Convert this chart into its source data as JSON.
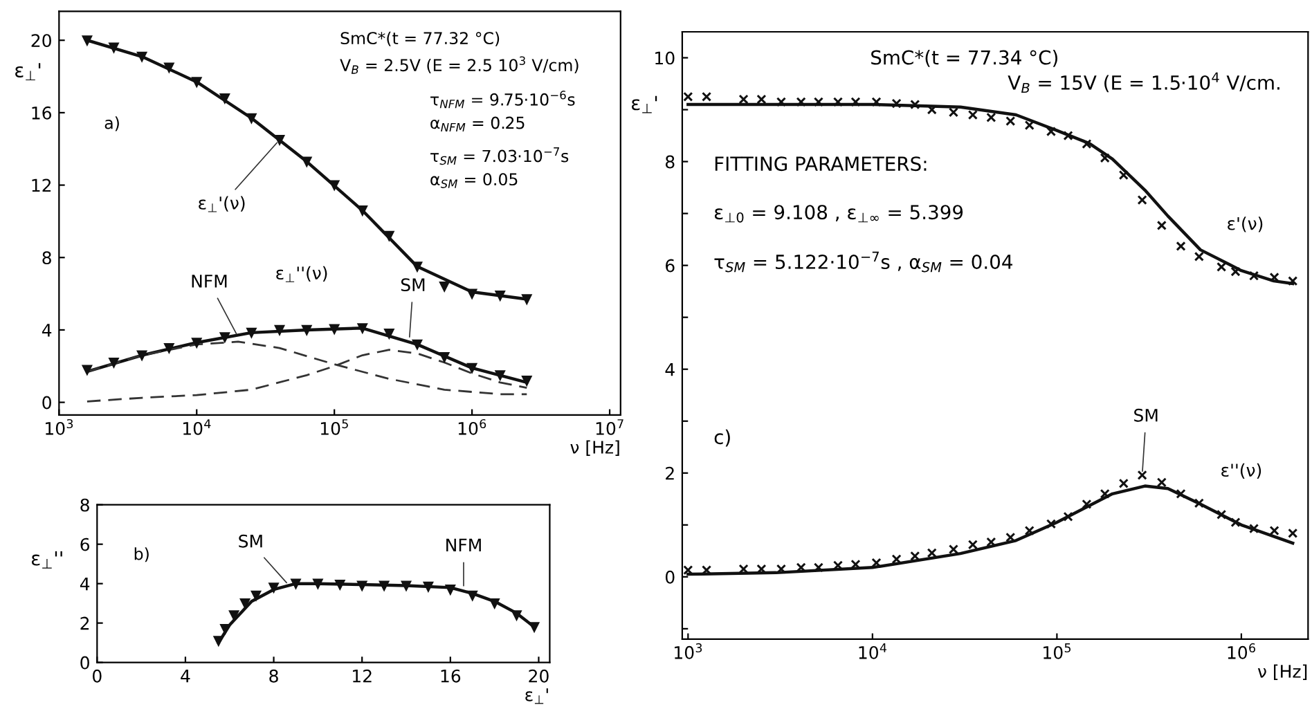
{
  "chart_data": [
    {
      "type": "line",
      "xlabel": "ν [Hz]",
      "ylabel": "ε$_{⊥}$'",
      "log": "x",
      "xlim": [
        1000,
        12000000
      ],
      "ylim": [
        -0.7,
        21.6
      ],
      "xticks": [
        {
          "value": 1000,
          "label": "10$^{3}$"
        },
        {
          "value": 10000,
          "label": "10$^{4}$"
        },
        {
          "value": 100000,
          "label": "10$^{5}$"
        },
        {
          "value": 1000000,
          "label": "10$^{6}$"
        },
        {
          "value": 10000000,
          "label": "10$^{7}$"
        }
      ],
      "yticks": [
        0,
        4,
        8,
        12,
        16,
        20
      ],
      "series": [
        {
          "type": "scatter",
          "marker": "triangle",
          "color": "#111111",
          "x": [
            1600,
            2500,
            4000,
            6300,
            10000,
            16000,
            25000,
            40000,
            63000,
            100000,
            160000,
            250000,
            400000,
            630000,
            1000000,
            1600000,
            2500000
          ],
          "values": [
            20.0,
            19.6,
            19.1,
            18.5,
            17.7,
            16.8,
            15.7,
            14.5,
            13.3,
            12.0,
            10.6,
            9.2,
            7.5,
            6.4,
            6.0,
            5.9,
            5.7
          ]
        },
        {
          "line_style": "solid",
          "color": "#111111",
          "x": [
            1600,
            4000,
            10000,
            25000,
            63000,
            160000,
            400000,
            1000000,
            2500000
          ],
          "values": [
            20.0,
            19.1,
            17.7,
            15.7,
            13.3,
            10.6,
            7.5,
            6.1,
            5.7
          ]
        },
        {
          "type": "scatter",
          "marker": "triangle",
          "color": "#111111",
          "x": [
            1600,
            2500,
            4000,
            6300,
            10000,
            16000,
            25000,
            40000,
            63000,
            100000,
            160000,
            250000,
            400000,
            630000,
            1000000,
            1600000,
            2500000
          ],
          "values": [
            1.8,
            2.2,
            2.6,
            3.0,
            3.3,
            3.6,
            3.85,
            4.0,
            4.0,
            4.05,
            4.1,
            3.8,
            3.2,
            2.5,
            1.9,
            1.5,
            1.2
          ]
        },
        {
          "line_style": "solid",
          "color": "#111111",
          "x": [
            1600,
            4000,
            10000,
            25000,
            63000,
            160000,
            400000,
            1000000,
            2500000
          ],
          "values": [
            1.7,
            2.6,
            3.3,
            3.85,
            4.0,
            4.1,
            3.2,
            1.9,
            1.1
          ]
        },
        {
          "line_style": "dashed",
          "color": "#333333",
          "x": [
            1600,
            4000,
            10000,
            20000,
            40000,
            100000,
            250000,
            630000,
            1600000,
            2500000
          ],
          "values": [
            1.7,
            2.6,
            3.2,
            3.35,
            3.0,
            2.1,
            1.3,
            0.7,
            0.45,
            0.45
          ]
        },
        {
          "line_style": "dashed",
          "color": "#333333",
          "x": [
            1600,
            4000,
            10000,
            25000,
            63000,
            100000,
            160000,
            250000,
            400000,
            630000,
            1000000,
            1600000,
            2500000
          ],
          "values": [
            0.05,
            0.25,
            0.4,
            0.7,
            1.5,
            2.0,
            2.6,
            2.9,
            2.7,
            2.2,
            1.6,
            1.1,
            0.8
          ]
        }
      ],
      "annotations": [
        "SmC*(t = 77.32 °C)",
        "V$_{B}$ = 2.5V (E = 2.5 10$^{3}$ V/cm)",
        "τ$_{NFM}$ = 9.75·10$^{−6}$s",
        "α$_{NFM}$ = 0.25",
        "τ$_{SM}$ = 7.03·10$^{−7}$s",
        "α$_{SM}$ = 0.05",
        "a)",
        {
          "text": "ε$_{⊥}$'(ν)",
          "x": 40000,
          "y": 14.5
        },
        {
          "text": "ε$_{⊥}$''(ν)",
          "x": 80000,
          "y": 4.05
        },
        {
          "text": "NFM",
          "x": 20000,
          "y": 3.6
        },
        {
          "text": "SM",
          "x": 350000,
          "y": 3.4
        }
      ]
    },
    {
      "type": "line",
      "xlabel": "ε$_{⊥}$'",
      "ylabel": "ε$_{⊥}$''",
      "xlim": [
        0,
        20.5
      ],
      "ylim": [
        0,
        8
      ],
      "xticks": [
        0,
        4,
        8,
        12,
        16,
        20
      ],
      "yticks": [
        0,
        2,
        4,
        6,
        8
      ],
      "series": [
        {
          "type": "scatter",
          "marker": "triangle",
          "color": "#111111",
          "x": [
            5.5,
            5.8,
            6.2,
            6.7,
            7.2,
            8,
            9,
            10,
            11,
            12,
            13,
            14,
            15,
            16,
            17,
            18,
            19,
            19.8
          ],
          "values": [
            1.1,
            1.7,
            2.4,
            3.0,
            3.4,
            3.8,
            4.0,
            4.0,
            3.95,
            3.9,
            3.9,
            3.9,
            3.85,
            3.7,
            3.4,
            3.0,
            2.4,
            1.8
          ]
        },
        {
          "line_style": "solid",
          "color": "#111111",
          "x": [
            5.5,
            6,
            7,
            8,
            9,
            10,
            12,
            14,
            16,
            17,
            18,
            19,
            19.8
          ],
          "values": [
            1.0,
            1.9,
            3.1,
            3.7,
            4.0,
            4.0,
            3.95,
            3.9,
            3.8,
            3.5,
            3.1,
            2.5,
            1.8
          ]
        }
      ],
      "annotations": [
        "b)",
        {
          "text": "SM",
          "x": 8.7,
          "y": 3.9
        },
        {
          "text": "NFM",
          "x": 16.6,
          "y": 3.7
        }
      ]
    },
    {
      "type": "line",
      "xlabel": "ν [Hz]",
      "ylabel": "ε$_{⊥}$'",
      "log": "x",
      "xlim": [
        930,
        2300000
      ],
      "ylim": [
        -1.2,
        10.5
      ],
      "xticks": [
        {
          "value": 1000,
          "label": "10$^{3}$"
        },
        {
          "value": 10000,
          "label": "10$^{4}$"
        },
        {
          "value": 100000,
          "label": "10$^{5}$"
        },
        {
          "value": 1000000,
          "label": "10$^{6}$"
        }
      ],
      "yticks": [
        {
          "value": -1,
          "label": null
        },
        0,
        {
          "value": 1,
          "label": null
        },
        2,
        {
          "value": 3,
          "label": null
        },
        4,
        {
          "value": 5,
          "label": null
        },
        6,
        {
          "value": 7,
          "label": null
        },
        8,
        {
          "value": 9,
          "label": null
        },
        10
      ],
      "series": [
        {
          "type": "scatter",
          "marker": "cross",
          "color": "#111111",
          "x": [
            1000,
            1260,
            2000,
            2500,
            3200,
            4100,
            5100,
            6500,
            8100,
            10500,
            13500,
            17000,
            21000,
            27500,
            35000,
            44000,
            56000,
            71000,
            93000,
            115000,
            145000,
            182000,
            230000,
            290000,
            370000,
            470000,
            590000,
            780000,
            930000,
            1170000,
            1510000,
            1900000
          ],
          "values": [
            9.25,
            9.25,
            9.2,
            9.2,
            9.15,
            9.15,
            9.15,
            9.15,
            9.15,
            9.15,
            9.12,
            9.1,
            9.0,
            8.95,
            8.9,
            8.85,
            8.78,
            8.7,
            8.58,
            8.5,
            8.34,
            8.07,
            7.74,
            7.26,
            6.77,
            6.37,
            6.17,
            5.97,
            5.88,
            5.8,
            5.77,
            5.7
          ]
        },
        {
          "line_style": "solid",
          "color": "#111111",
          "x": [
            1000,
            10000,
            30000,
            60000,
            100000,
            150000,
            200000,
            300000,
            400000,
            600000,
            1000000,
            1500000,
            1900000
          ],
          "values": [
            9.1,
            9.1,
            9.05,
            8.9,
            8.6,
            8.35,
            8.05,
            7.45,
            6.95,
            6.3,
            5.9,
            5.7,
            5.65
          ]
        },
        {
          "type": "scatter",
          "marker": "cross",
          "color": "#111111",
          "x": [
            1000,
            1260,
            2000,
            2500,
            3200,
            4100,
            5100,
            6500,
            8100,
            10500,
            13500,
            17000,
            21000,
            27500,
            35000,
            44000,
            56000,
            71000,
            93000,
            115000,
            145000,
            182000,
            230000,
            290000,
            370000,
            470000,
            590000,
            780000,
            930000,
            1170000,
            1510000,
            1900000
          ],
          "values": [
            0.13,
            0.13,
            0.15,
            0.15,
            0.15,
            0.18,
            0.18,
            0.22,
            0.24,
            0.27,
            0.34,
            0.4,
            0.46,
            0.53,
            0.62,
            0.67,
            0.76,
            0.89,
            1.02,
            1.16,
            1.4,
            1.6,
            1.8,
            1.96,
            1.82,
            1.6,
            1.42,
            1.2,
            1.05,
            0.93,
            0.89,
            0.84
          ]
        },
        {
          "line_style": "solid",
          "color": "#111111",
          "x": [
            1000,
            3000,
            10000,
            30000,
            60000,
            100000,
            200000,
            300000,
            400000,
            600000,
            1000000,
            1900000
          ],
          "values": [
            0.05,
            0.08,
            0.18,
            0.45,
            0.7,
            1.05,
            1.6,
            1.75,
            1.7,
            1.4,
            1.0,
            0.65
          ]
        }
      ],
      "annotations": [
        "SmC*(t = 77.34 °C)",
        "V$_{B}$ = 15V (E = 1.5·10$^{4}$ V/cm.",
        "FITTING PARAMETERS:",
        "ε$_{⊥0}$ = 9.108 , ε$_{⊥∞}$ = 5.399",
        "τ$_{SM}$ = 5.122·10$^{−7}$s , α$_{SM}$ = 0.04",
        "c)",
        {
          "text": "ε'(ν)",
          "x": 1000000,
          "y": 5.95
        },
        {
          "text": "ε''(ν)",
          "x": 1000000,
          "y": 1.05
        },
        {
          "text": "SM",
          "x": 290000,
          "y": 1.96
        }
      ]
    }
  ]
}
